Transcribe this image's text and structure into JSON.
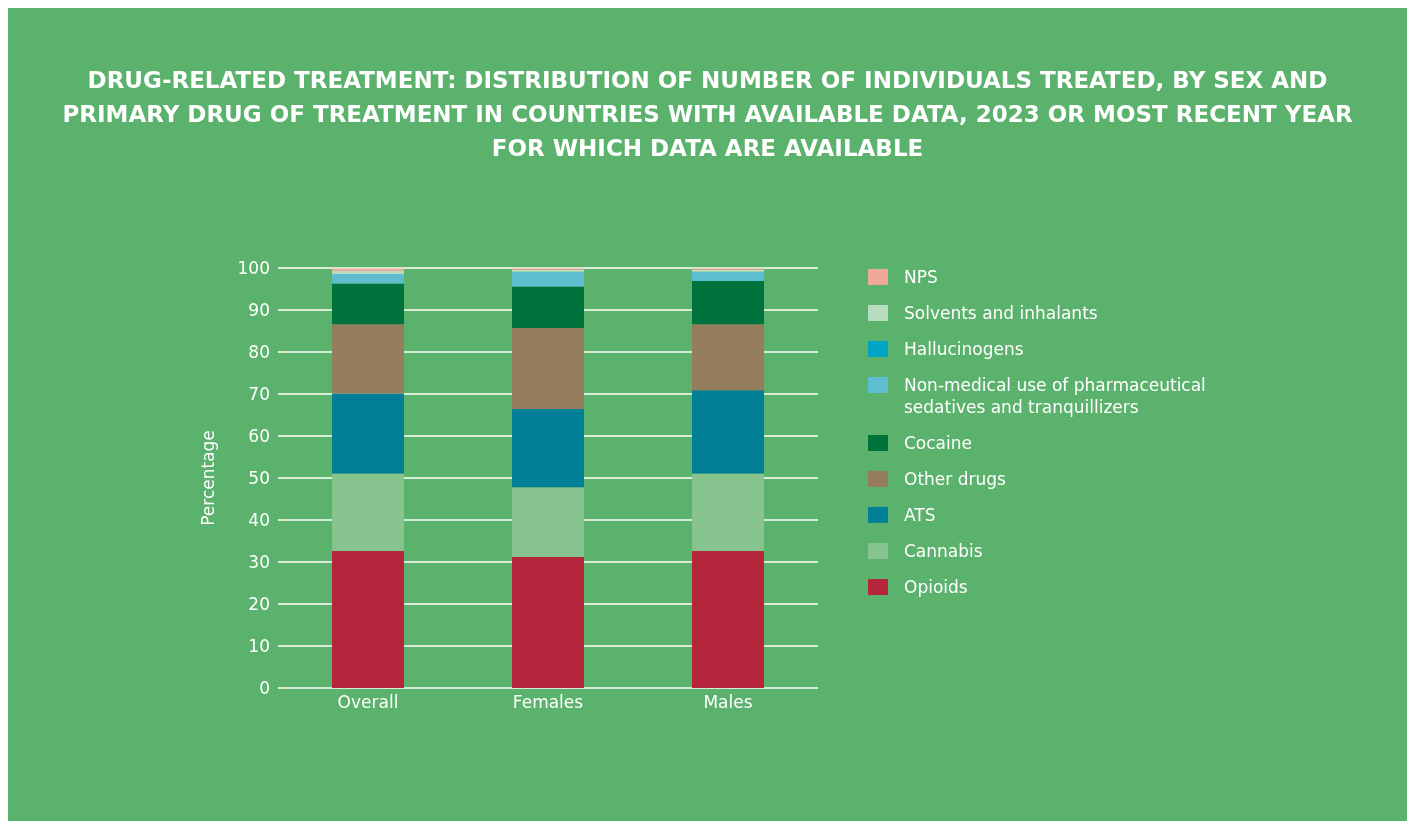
{
  "chart_data": {
    "type": "bar",
    "title": "DRUG-RELATED TREATMENT: DISTRIBUTION OF NUMBER OF INDIVIDUALS TREATED, BY SEX AND PRIMARY DRUG OF TREATMENT IN COUNTRIES WITH AVAILABLE DATA, 2023 OR MOST RECENT YEAR FOR WHICH DATA ARE AVAILABLE",
    "ylabel": "Percentage",
    "categories": [
      "Overall",
      "Females",
      "Males"
    ],
    "stacked": true,
    "ylim": [
      0,
      100
    ],
    "yticks": [
      0,
      10,
      20,
      30,
      40,
      50,
      60,
      70,
      80,
      90,
      100
    ],
    "grid": "y",
    "legend": "right",
    "series": [
      {
        "name": "Opioids",
        "color": "#b5253c",
        "values": [
          32.6,
          31.2,
          32.6
        ]
      },
      {
        "name": "Cannabis",
        "color": "#86c38e",
        "values": [
          18.5,
          16.6,
          18.5
        ]
      },
      {
        "name": "ATS",
        "color": "#007f97",
        "values": [
          19,
          18.6,
          19.8
        ]
      },
      {
        "name": "Other drugs",
        "color": "#957c5c",
        "values": [
          16.5,
          19.3,
          15.7
        ]
      },
      {
        "name": "Cocaine",
        "color": "#00733d",
        "values": [
          9.7,
          9.9,
          10.3
        ]
      },
      {
        "name": "Non-medical use of pharmaceutical sedatives and tranquillizers",
        "color": "#5fbdd0",
        "values": [
          2.3,
          3.5,
          2.2
        ]
      },
      {
        "name": "Hallucinogens",
        "color": "#00a4c4",
        "values": [
          null,
          null,
          null
        ]
      },
      {
        "name": "Solvents and inhalants",
        "color": "#b8dcc0",
        "values": [
          0.7,
          0.5,
          0.5
        ]
      },
      {
        "name": "NPS",
        "color": "#f0a898",
        "values": [
          0.5,
          0.3,
          0.3
        ]
      }
    ]
  }
}
